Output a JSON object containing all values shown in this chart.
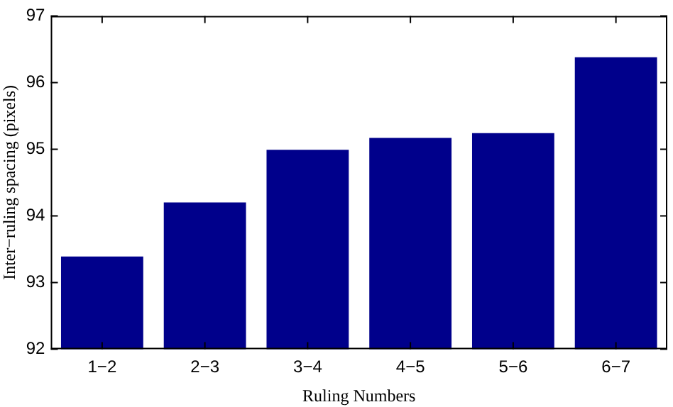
{
  "chart_data": {
    "type": "bar",
    "xlabel": "Ruling Numbers",
    "ylabel": "Inter−ruling spacing (pixels)",
    "categories": [
      "1−2",
      "2−3",
      "3−4",
      "4−5",
      "5−6",
      "6−7"
    ],
    "values": [
      93.39,
      94.2,
      94.99,
      95.17,
      95.24,
      96.38
    ],
    "color": "#00008b",
    "ylim": [
      92,
      97
    ],
    "yticks": [
      92,
      93,
      94,
      95,
      96,
      97
    ],
    "grid": false,
    "legend": false
  }
}
